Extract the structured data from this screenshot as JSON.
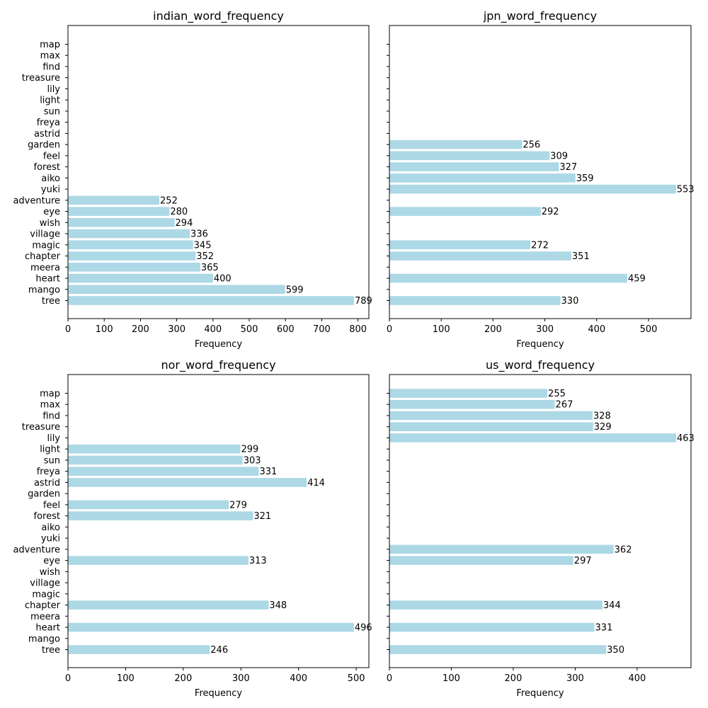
{
  "chart_data": [
    {
      "type": "bar",
      "orientation": "horizontal",
      "title": "indian_word_frequency",
      "xlabel": "Frequency",
      "ylabel": "",
      "categories": [
        "tree",
        "mango",
        "heart",
        "meera",
        "chapter",
        "magic",
        "village",
        "wish",
        "eye",
        "adventure",
        "yuki",
        "aiko",
        "forest",
        "feel",
        "garden",
        "astrid",
        "freya",
        "sun",
        "light",
        "lily",
        "treasure",
        "find",
        "max",
        "map"
      ],
      "values": [
        789,
        599,
        400,
        365,
        352,
        345,
        336,
        294,
        280,
        252,
        null,
        null,
        null,
        null,
        null,
        null,
        null,
        null,
        null,
        null,
        null,
        null,
        null,
        null
      ],
      "xlim": [
        0,
        830
      ],
      "xticks": [
        0,
        100,
        200,
        300,
        400,
        500,
        600,
        700,
        800
      ],
      "show_ytick_labels": true,
      "bar_color": "#add8e6",
      "grid": false
    },
    {
      "type": "bar",
      "orientation": "horizontal",
      "title": "jpn_word_frequency",
      "xlabel": "Frequency",
      "ylabel": "",
      "categories": [
        "tree",
        "mango",
        "heart",
        "meera",
        "chapter",
        "magic",
        "village",
        "wish",
        "eye",
        "adventure",
        "yuki",
        "aiko",
        "forest",
        "feel",
        "garden",
        "astrid",
        "freya",
        "sun",
        "light",
        "lily",
        "treasure",
        "find",
        "max",
        "map"
      ],
      "values": [
        330,
        null,
        459,
        null,
        351,
        272,
        null,
        null,
        292,
        null,
        553,
        359,
        327,
        309,
        256,
        null,
        null,
        null,
        null,
        null,
        null,
        null,
        null,
        null
      ],
      "xlim": [
        0,
        582
      ],
      "xticks": [
        0,
        100,
        200,
        300,
        400,
        500
      ],
      "show_ytick_labels": false,
      "bar_color": "#add8e6",
      "grid": false
    },
    {
      "type": "bar",
      "orientation": "horizontal",
      "title": "nor_word_frequency",
      "xlabel": "Frequency",
      "ylabel": "",
      "categories": [
        "tree",
        "mango",
        "heart",
        "meera",
        "chapter",
        "magic",
        "village",
        "wish",
        "eye",
        "adventure",
        "yuki",
        "aiko",
        "forest",
        "feel",
        "garden",
        "astrid",
        "freya",
        "sun",
        "light",
        "lily",
        "treasure",
        "find",
        "max",
        "map"
      ],
      "values": [
        246,
        null,
        496,
        null,
        348,
        null,
        null,
        null,
        313,
        null,
        null,
        null,
        321,
        279,
        null,
        414,
        331,
        303,
        299,
        null,
        null,
        null,
        null,
        null
      ],
      "xlim": [
        0,
        522
      ],
      "xticks": [
        0,
        100,
        200,
        300,
        400,
        500
      ],
      "show_ytick_labels": true,
      "bar_color": "#add8e6",
      "grid": false
    },
    {
      "type": "bar",
      "orientation": "horizontal",
      "title": "us_word_frequency",
      "xlabel": "Frequency",
      "ylabel": "",
      "categories": [
        "tree",
        "mango",
        "heart",
        "meera",
        "chapter",
        "magic",
        "village",
        "wish",
        "eye",
        "adventure",
        "yuki",
        "aiko",
        "forest",
        "feel",
        "garden",
        "astrid",
        "freya",
        "sun",
        "light",
        "lily",
        "treasure",
        "find",
        "max",
        "map"
      ],
      "values": [
        350,
        null,
        331,
        null,
        344,
        null,
        null,
        null,
        297,
        362,
        null,
        null,
        null,
        null,
        null,
        null,
        null,
        null,
        null,
        463,
        329,
        328,
        267,
        255
      ],
      "xlim": [
        0,
        487
      ],
      "xticks": [
        0,
        100,
        200,
        300,
        400
      ],
      "show_ytick_labels": false,
      "bar_color": "#add8e6",
      "grid": false
    }
  ]
}
